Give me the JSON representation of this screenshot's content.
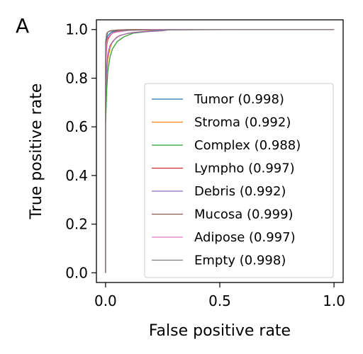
{
  "panel_label": "A",
  "chart_data": {
    "type": "line",
    "title": "",
    "xlabel": "False positive rate",
    "ylabel": "True positive rate",
    "xlim": [
      -0.04,
      1.04
    ],
    "ylim": [
      -0.04,
      1.04
    ],
    "xticks": [
      {
        "value": 0.0,
        "label": "0.0"
      },
      {
        "value": 0.5,
        "label": "0.5"
      },
      {
        "value": 1.0,
        "label": "1.0"
      }
    ],
    "yticks": [
      {
        "value": 0.0,
        "label": "0.0"
      },
      {
        "value": 0.2,
        "label": "0.2"
      },
      {
        "value": 0.4,
        "label": "0.4"
      },
      {
        "value": 0.6,
        "label": "0.6"
      },
      {
        "value": 0.8,
        "label": "0.8"
      },
      {
        "value": 1.0,
        "label": "1.0"
      }
    ],
    "grid": false,
    "legend_position": "lower-right",
    "series": [
      {
        "name": "Tumor (0.998)",
        "color": "#1f77b4",
        "x": [
          0,
          0.0,
          0.003,
          0.006,
          0.01,
          0.02,
          0.03,
          0.05,
          0.1,
          0.2,
          1.0
        ],
        "y": [
          0,
          0.84,
          0.92,
          0.96,
          0.975,
          0.985,
          0.99,
          0.995,
          0.998,
          1.0,
          1.0
        ]
      },
      {
        "name": "Stroma (0.992)",
        "color": "#ff7f0e",
        "x": [
          0,
          0.0,
          0.005,
          0.01,
          0.02,
          0.03,
          0.05,
          0.08,
          0.12,
          0.2,
          0.3,
          1.0
        ],
        "y": [
          0,
          0.7,
          0.82,
          0.88,
          0.925,
          0.95,
          0.97,
          0.98,
          0.988,
          0.995,
          1.0,
          1.0
        ]
      },
      {
        "name": "Complex (0.988)",
        "color": "#2ca02c",
        "x": [
          0,
          0.0,
          0.005,
          0.01,
          0.02,
          0.03,
          0.05,
          0.08,
          0.12,
          0.2,
          0.3,
          1.0
        ],
        "y": [
          0,
          0.6,
          0.75,
          0.83,
          0.89,
          0.92,
          0.95,
          0.97,
          0.985,
          0.993,
          1.0,
          1.0
        ]
      },
      {
        "name": "Lympho (0.997)",
        "color": "#d62728",
        "x": [
          0,
          0.0,
          0.003,
          0.006,
          0.01,
          0.02,
          0.03,
          0.05,
          0.08,
          0.15,
          1.0
        ],
        "y": [
          0,
          0.8,
          0.9,
          0.94,
          0.96,
          0.975,
          0.985,
          0.992,
          0.996,
          1.0,
          1.0
        ]
      },
      {
        "name": "Debris (0.992)",
        "color": "#9467bd",
        "x": [
          0,
          0.0,
          0.005,
          0.01,
          0.02,
          0.04,
          0.06,
          0.1,
          0.15,
          0.25,
          0.28,
          1.0
        ],
        "y": [
          0,
          0.72,
          0.84,
          0.9,
          0.935,
          0.96,
          0.975,
          0.985,
          0.99,
          0.995,
          1.0,
          1.0
        ]
      },
      {
        "name": "Mucosa (0.999)",
        "color": "#8c564b",
        "x": [
          0,
          0.0,
          0.002,
          0.005,
          0.01,
          0.02,
          0.05,
          0.1,
          1.0
        ],
        "y": [
          0,
          0.9,
          0.95,
          0.975,
          0.99,
          0.995,
          0.998,
          1.0,
          1.0
        ]
      },
      {
        "name": "Adipose (0.997)",
        "color": "#e377c2",
        "x": [
          0,
          0.0,
          0.003,
          0.006,
          0.01,
          0.02,
          0.03,
          0.05,
          0.1,
          0.2,
          1.0
        ],
        "y": [
          0,
          0.85,
          0.92,
          0.95,
          0.965,
          0.978,
          0.985,
          0.99,
          0.996,
          1.0,
          1.0
        ]
      },
      {
        "name": "Empty (0.998)",
        "color": "#7f7f7f",
        "x": [
          0,
          0.0,
          0.005,
          0.01,
          0.02,
          0.05,
          0.1,
          0.2,
          0.58,
          1.0
        ],
        "y": [
          0,
          0.95,
          0.985,
          0.99,
          0.993,
          0.995,
          0.997,
          0.998,
          1.0,
          1.0
        ]
      }
    ]
  }
}
